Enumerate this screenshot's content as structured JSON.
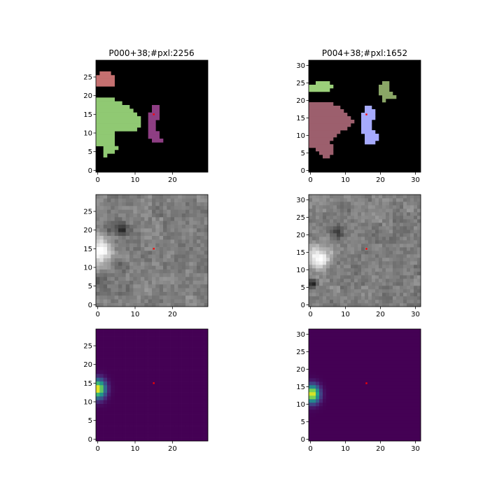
{
  "colors": {
    "mask_bg": "#000000",
    "green_region": "#90c973",
    "salmon_region": "#c57070",
    "purple_region": "#8e3e83",
    "mauve_region": "#9c5f6d",
    "lavender_region": "#a6aafd",
    "olive_green_region": "#8aa666",
    "lime_region": "#9bd07a",
    "center_marker": "#ff0000",
    "viridis_low": "#440154",
    "viridis_mid": "#21918c",
    "viridis_high": "#fde725"
  },
  "chart_data": [
    {
      "type": "heatmap",
      "name": "segmentation-mask-left",
      "title": "P000+38;#pxl:2256",
      "size": 30,
      "xlim": [
        -0.5,
        29.5
      ],
      "ylim": [
        -0.5,
        29.5
      ],
      "xticks": [
        0,
        10,
        20
      ],
      "yticks": [
        0,
        5,
        10,
        15,
        20,
        25
      ],
      "background": "black",
      "center": [
        15,
        15
      ],
      "regions": [
        {
          "color_key": "salmon_region",
          "rows": [
            [
              23,
              0,
              4
            ],
            [
              24,
              0,
              4
            ],
            [
              25,
              0,
              4
            ],
            [
              26,
              1,
              3
            ]
          ]
        },
        {
          "color_key": "green_region",
          "rows": [
            [
              4,
              2,
              2
            ],
            [
              5,
              2,
              4
            ],
            [
              6,
              2,
              5
            ],
            [
              7,
              0,
              4
            ],
            [
              8,
              0,
              4
            ],
            [
              9,
              0,
              4
            ],
            [
              10,
              0,
              4
            ],
            [
              11,
              0,
              10
            ],
            [
              12,
              0,
              11
            ],
            [
              13,
              0,
              11
            ],
            [
              14,
              0,
              11
            ],
            [
              15,
              0,
              10
            ],
            [
              16,
              0,
              9
            ],
            [
              17,
              0,
              8
            ],
            [
              18,
              0,
              6
            ],
            [
              19,
              0,
              4
            ]
          ]
        },
        {
          "color_key": "purple_region",
          "rows": [
            [
              8,
              15,
              17
            ],
            [
              9,
              14,
              16
            ],
            [
              10,
              14,
              16
            ],
            [
              11,
              14,
              15
            ],
            [
              12,
              14,
              15
            ],
            [
              13,
              14,
              15
            ],
            [
              14,
              14,
              16
            ],
            [
              15,
              14,
              16
            ],
            [
              16,
              15,
              16
            ],
            [
              17,
              15,
              16
            ]
          ]
        }
      ]
    },
    {
      "type": "heatmap",
      "name": "segmentation-mask-right",
      "title": "P004+38;#pxl:1652",
      "size": 32,
      "xlim": [
        -0.5,
        31.5
      ],
      "ylim": [
        -0.5,
        31.5
      ],
      "xticks": [
        0,
        10,
        20,
        30
      ],
      "yticks": [
        0,
        5,
        10,
        15,
        20,
        25,
        30
      ],
      "background": "black",
      "center": [
        16,
        16
      ],
      "regions": [
        {
          "color_key": "lime_region",
          "rows": [
            [
              23,
              0,
              5
            ],
            [
              24,
              0,
              6
            ],
            [
              25,
              2,
              5
            ]
          ]
        },
        {
          "color_key": "olive_green_region",
          "rows": [
            [
              20,
              21,
              21
            ],
            [
              21,
              21,
              24
            ],
            [
              22,
              20,
              23
            ],
            [
              23,
              20,
              22
            ],
            [
              24,
              20,
              22
            ],
            [
              25,
              21,
              22
            ]
          ]
        },
        {
          "color_key": "mauve_region",
          "rows": [
            [
              4,
              4,
              5
            ],
            [
              5,
              3,
              6
            ],
            [
              6,
              2,
              6
            ],
            [
              7,
              0,
              6
            ],
            [
              8,
              0,
              5
            ],
            [
              9,
              0,
              6
            ],
            [
              10,
              0,
              7
            ],
            [
              11,
              0,
              8
            ],
            [
              12,
              0,
              10
            ],
            [
              13,
              0,
              11
            ],
            [
              14,
              0,
              12
            ],
            [
              15,
              0,
              11
            ],
            [
              16,
              0,
              10
            ],
            [
              17,
              0,
              9
            ],
            [
              18,
              0,
              8
            ],
            [
              19,
              0,
              6
            ]
          ]
        },
        {
          "color_key": "lavender_region",
          "rows": [
            [
              8,
              16,
              18
            ],
            [
              9,
              16,
              19
            ],
            [
              10,
              16,
              19
            ],
            [
              11,
              15,
              18
            ],
            [
              12,
              15,
              17
            ],
            [
              13,
              15,
              17
            ],
            [
              14,
              15,
              17
            ],
            [
              15,
              15,
              18
            ],
            [
              16,
              15,
              18
            ],
            [
              17,
              16,
              18
            ],
            [
              18,
              16,
              17
            ]
          ]
        }
      ]
    },
    {
      "type": "heatmap",
      "name": "grayscale-image-left",
      "size": 30,
      "xlim": [
        -0.5,
        29.5
      ],
      "ylim": [
        -0.5,
        29.5
      ],
      "xticks": [
        0,
        10,
        20
      ],
      "yticks": [
        0,
        5,
        10,
        15,
        20,
        25
      ],
      "colormap": "gray",
      "center": [
        15,
        15
      ],
      "background_level": 0.5,
      "blobs": [
        {
          "x": 0.5,
          "y": 14.5,
          "sigma": 2.4,
          "amp": 0.55
        },
        {
          "x": 6.5,
          "y": 20.5,
          "sigma": 1.1,
          "amp": -0.35
        },
        {
          "x": 3.0,
          "y": 20.0,
          "sigma": 1.2,
          "amp": -0.15
        },
        {
          "x": 5.0,
          "y": 11.0,
          "sigma": 1.5,
          "amp": -0.12
        },
        {
          "x": 1.0,
          "y": 7.0,
          "sigma": 1.3,
          "amp": -0.1
        }
      ]
    },
    {
      "type": "heatmap",
      "name": "grayscale-image-right",
      "size": 32,
      "xlim": [
        -0.5,
        31.5
      ],
      "ylim": [
        -0.5,
        31.5
      ],
      "xticks": [
        0,
        10,
        20,
        30
      ],
      "yticks": [
        0,
        5,
        10,
        15,
        20,
        25,
        30
      ],
      "colormap": "gray",
      "center": [
        16,
        16
      ],
      "background_level": 0.5,
      "blobs": [
        {
          "x": 2.5,
          "y": 13.5,
          "sigma": 2.3,
          "amp": 0.55
        },
        {
          "x": 8.0,
          "y": 20.5,
          "sigma": 1.2,
          "amp": -0.25
        },
        {
          "x": 0.5,
          "y": 6.0,
          "sigma": 0.9,
          "amp": -0.45
        },
        {
          "x": 6.0,
          "y": 10.5,
          "sigma": 1.3,
          "amp": -0.12
        }
      ]
    },
    {
      "type": "heatmap",
      "name": "viridis-heatmap-left",
      "size": 30,
      "xlim": [
        -0.5,
        29.5
      ],
      "ylim": [
        -0.5,
        29.5
      ],
      "xticks": [
        0,
        10,
        20
      ],
      "yticks": [
        0,
        5,
        10,
        15,
        20,
        25
      ],
      "colormap": "viridis",
      "center": [
        15,
        15
      ],
      "peak": {
        "x": 0,
        "y": 13.5,
        "sigma_x": 1.4,
        "sigma_y": 1.7
      }
    },
    {
      "type": "heatmap",
      "name": "viridis-heatmap-right",
      "size": 32,
      "xlim": [
        -0.5,
        31.5
      ],
      "ylim": [
        -0.5,
        31.5
      ],
      "xticks": [
        0,
        10,
        20,
        30
      ],
      "yticks": [
        0,
        5,
        10,
        15,
        20,
        25,
        30
      ],
      "colormap": "viridis",
      "center": [
        16,
        16
      ],
      "peak": {
        "x": 0.5,
        "y": 13.0,
        "sigma_x": 1.4,
        "sigma_y": 1.7
      }
    }
  ]
}
